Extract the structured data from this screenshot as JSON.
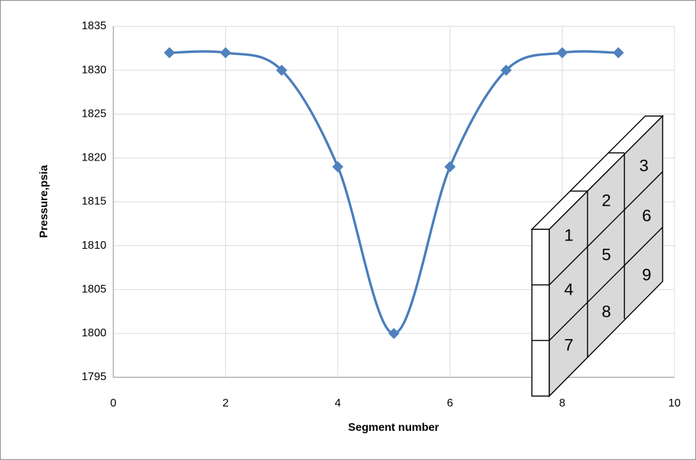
{
  "chart_data": {
    "type": "line",
    "smooth": true,
    "x_label": "Segment number",
    "y_label": "Pressure,psia",
    "x": [
      1,
      2,
      3,
      4,
      5,
      6,
      7,
      8,
      9
    ],
    "values": [
      1832,
      1832,
      1830,
      1819,
      1800,
      1819,
      1830,
      1832,
      1832
    ],
    "color": "#4a7ebb",
    "marker_color": "#4f81bd",
    "xlim": [
      0,
      10
    ],
    "xticks": [
      0,
      2,
      4,
      6,
      8,
      10
    ],
    "ylim": [
      1795,
      1835
    ],
    "yticks": [
      1795,
      1800,
      1805,
      1810,
      1815,
      1820,
      1825,
      1830,
      1835
    ],
    "grid": true,
    "annotations": [
      "1",
      "2",
      "3",
      "4",
      "5",
      "6",
      "7",
      "8",
      "9"
    ]
  }
}
